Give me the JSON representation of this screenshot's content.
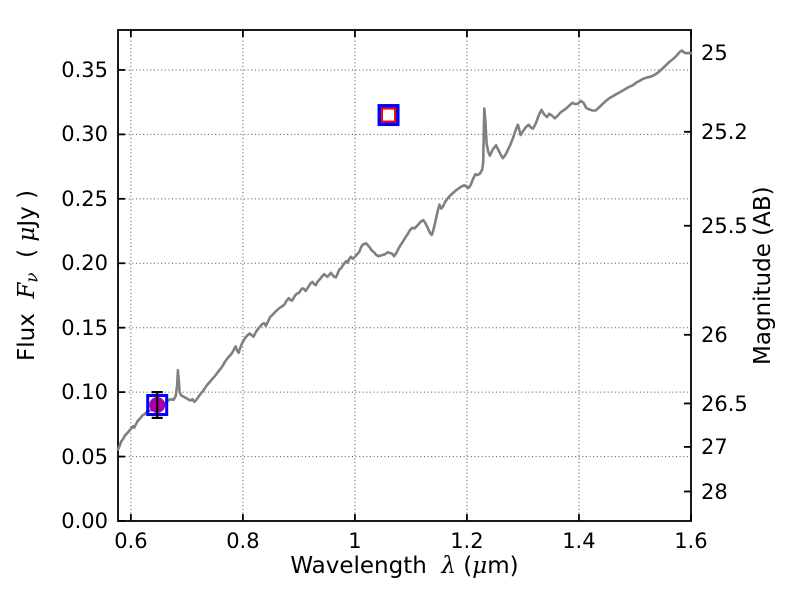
{
  "chart_data": {
    "type": "line",
    "title": "",
    "xlabel": "Wavelength λ (μm)",
    "ylabel_left": "Flux Fν (μJy)",
    "ylabel_right": "Magnitude (AB)",
    "xlabel_parts": {
      "word": "Wavelength  ",
      "lambda": "λ",
      "open": " (",
      "mu": "μ",
      "close": "m)"
    },
    "left_ylabel_parts": {
      "word": "Flux  ",
      "f": "F",
      "nu": "ν",
      "open": "  ( ",
      "mu": "μ",
      "close": "Jy )"
    },
    "right_ylabel": "Magnitude (AB)",
    "xlim": [
      0.577,
      1.6
    ],
    "flux_lim": [
      0,
      0.381
    ],
    "grid": {
      "style": "dotted",
      "color": "#4d4d4d"
    },
    "x_ticks": [
      {
        "value": 0.6,
        "label": "0.6"
      },
      {
        "value": 0.8,
        "label": "0.8"
      },
      {
        "value": 1.0,
        "label": "1"
      },
      {
        "value": 1.2,
        "label": "1.2"
      },
      {
        "value": 1.4,
        "label": "1.4"
      },
      {
        "value": 1.6,
        "label": "1.6"
      }
    ],
    "flux_ticks": [
      {
        "value": 0.0,
        "label": "0.00"
      },
      {
        "value": 0.05,
        "label": "0.05"
      },
      {
        "value": 0.1,
        "label": "0.10"
      },
      {
        "value": 0.15,
        "label": "0.15"
      },
      {
        "value": 0.2,
        "label": "0.20"
      },
      {
        "value": 0.25,
        "label": "0.25"
      },
      {
        "value": 0.3,
        "label": "0.30"
      },
      {
        "value": 0.35,
        "label": "0.35"
      }
    ],
    "mag_ticks": [
      {
        "mag": 25,
        "label": "25",
        "flux": 0.3631
      },
      {
        "mag": 25.2,
        "label": "25.2",
        "flux": 0.302
      },
      {
        "mag": 25.5,
        "label": "25.5",
        "flux": 0.2291
      },
      {
        "mag": 26,
        "label": "26",
        "flux": 0.1445
      },
      {
        "mag": 26.5,
        "label": "26.5",
        "flux": 0.0912
      },
      {
        "mag": 27,
        "label": "27",
        "flux": 0.0575
      },
      {
        "mag": 28,
        "label": "28",
        "flux": 0.0229
      }
    ],
    "series": [
      {
        "name": "model-spectrum",
        "color": "#808080",
        "width": 2.6,
        "points": [
          [
            0.577,
            0.0555
          ],
          [
            0.58,
            0.0585
          ],
          [
            0.583,
            0.062
          ],
          [
            0.586,
            0.0635
          ],
          [
            0.589,
            0.066
          ],
          [
            0.592,
            0.0675
          ],
          [
            0.595,
            0.069
          ],
          [
            0.598,
            0.0705
          ],
          [
            0.601,
            0.072
          ],
          [
            0.604,
            0.0735
          ],
          [
            0.606,
            0.0725
          ],
          [
            0.609,
            0.075
          ],
          [
            0.612,
            0.0775
          ],
          [
            0.615,
            0.079
          ],
          [
            0.618,
            0.0805
          ],
          [
            0.621,
            0.082
          ],
          [
            0.625,
            0.083
          ],
          [
            0.628,
            0.0845
          ],
          [
            0.632,
            0.0855
          ],
          [
            0.636,
            0.086
          ],
          [
            0.64,
            0.0865
          ],
          [
            0.644,
            0.086
          ],
          [
            0.648,
            0.0875
          ],
          [
            0.652,
            0.089
          ],
          [
            0.656,
            0.0905
          ],
          [
            0.66,
            0.0915
          ],
          [
            0.664,
            0.0925
          ],
          [
            0.668,
            0.094
          ],
          [
            0.672,
            0.0945
          ],
          [
            0.676,
            0.094
          ],
          [
            0.68,
            0.097
          ],
          [
            0.6825,
            0.105
          ],
          [
            0.684,
            0.117
          ],
          [
            0.6855,
            0.109
          ],
          [
            0.687,
            0.1
          ],
          [
            0.69,
            0.0975
          ],
          [
            0.694,
            0.0965
          ],
          [
            0.698,
            0.0955
          ],
          [
            0.702,
            0.0945
          ],
          [
            0.706,
            0.0935
          ],
          [
            0.71,
            0.0945
          ],
          [
            0.713,
            0.0925
          ],
          [
            0.716,
            0.0935
          ],
          [
            0.72,
            0.096
          ],
          [
            0.724,
            0.0985
          ],
          [
            0.728,
            0.1005
          ],
          [
            0.732,
            0.103
          ],
          [
            0.736,
            0.1055
          ],
          [
            0.74,
            0.1075
          ],
          [
            0.744,
            0.1095
          ],
          [
            0.748,
            0.1115
          ],
          [
            0.752,
            0.1135
          ],
          [
            0.756,
            0.116
          ],
          [
            0.76,
            0.118
          ],
          [
            0.764,
            0.1205
          ],
          [
            0.768,
            0.1235
          ],
          [
            0.772,
            0.126
          ],
          [
            0.776,
            0.128
          ],
          [
            0.78,
            0.13
          ],
          [
            0.784,
            0.133
          ],
          [
            0.787,
            0.1355
          ],
          [
            0.79,
            0.132
          ],
          [
            0.7925,
            0.1305
          ],
          [
            0.795,
            0.134
          ],
          [
            0.798,
            0.1375
          ],
          [
            0.801,
            0.14
          ],
          [
            0.804,
            0.142
          ],
          [
            0.808,
            0.144
          ],
          [
            0.812,
            0.1455
          ],
          [
            0.816,
            0.144
          ],
          [
            0.819,
            0.143
          ],
          [
            0.823,
            0.1465
          ],
          [
            0.827,
            0.149
          ],
          [
            0.831,
            0.151
          ],
          [
            0.835,
            0.153
          ],
          [
            0.838,
            0.1535
          ],
          [
            0.841,
            0.1515
          ],
          [
            0.845,
            0.155
          ],
          [
            0.849,
            0.1585
          ],
          [
            0.853,
            0.16
          ],
          [
            0.858,
            0.1625
          ],
          [
            0.862,
            0.164
          ],
          [
            0.866,
            0.1655
          ],
          [
            0.87,
            0.1665
          ],
          [
            0.874,
            0.168
          ],
          [
            0.878,
            0.171
          ],
          [
            0.882,
            0.173
          ],
          [
            0.885,
            0.1715
          ],
          [
            0.888,
            0.171
          ],
          [
            0.891,
            0.1735
          ],
          [
            0.894,
            0.1755
          ],
          [
            0.897,
            0.1765
          ],
          [
            0.9,
            0.177
          ],
          [
            0.903,
            0.179
          ],
          [
            0.906,
            0.1805
          ],
          [
            0.909,
            0.18
          ],
          [
            0.912,
            0.1785
          ],
          [
            0.915,
            0.1805
          ],
          [
            0.918,
            0.1825
          ],
          [
            0.921,
            0.1845
          ],
          [
            0.924,
            0.1855
          ],
          [
            0.927,
            0.184
          ],
          [
            0.93,
            0.183
          ],
          [
            0.933,
            0.1855
          ],
          [
            0.936,
            0.187
          ],
          [
            0.939,
            0.1885
          ],
          [
            0.942,
            0.19
          ],
          [
            0.945,
            0.1915
          ],
          [
            0.948,
            0.1905
          ],
          [
            0.951,
            0.1895
          ],
          [
            0.954,
            0.191
          ],
          [
            0.957,
            0.1925
          ],
          [
            0.96,
            0.191
          ],
          [
            0.963,
            0.1895
          ],
          [
            0.966,
            0.189
          ],
          [
            0.969,
            0.192
          ],
          [
            0.972,
            0.195
          ],
          [
            0.975,
            0.196
          ],
          [
            0.978,
            0.198
          ],
          [
            0.981,
            0.2
          ],
          [
            0.984,
            0.2015
          ],
          [
            0.987,
            0.2005
          ],
          [
            0.99,
            0.2035
          ],
          [
            0.993,
            0.205
          ],
          [
            0.996,
            0.2035
          ],
          [
            0.999,
            0.2045
          ],
          [
            1.002,
            0.206
          ],
          [
            1.005,
            0.2075
          ],
          [
            1.008,
            0.209
          ],
          [
            1.011,
            0.2125
          ],
          [
            1.014,
            0.2145
          ],
          [
            1.017,
            0.215
          ],
          [
            1.02,
            0.2155
          ],
          [
            1.023,
            0.214
          ],
          [
            1.026,
            0.2125
          ],
          [
            1.03,
            0.21
          ],
          [
            1.034,
            0.2085
          ],
          [
            1.038,
            0.2065
          ],
          [
            1.042,
            0.2055
          ],
          [
            1.046,
            0.206
          ],
          [
            1.05,
            0.2065
          ],
          [
            1.054,
            0.207
          ],
          [
            1.058,
            0.2085
          ],
          [
            1.062,
            0.208
          ],
          [
            1.066,
            0.2075
          ],
          [
            1.07,
            0.2055
          ],
          [
            1.074,
            0.208
          ],
          [
            1.078,
            0.2115
          ],
          [
            1.082,
            0.2145
          ],
          [
            1.086,
            0.217
          ],
          [
            1.09,
            0.22
          ],
          [
            1.094,
            0.2225
          ],
          [
            1.098,
            0.2255
          ],
          [
            1.102,
            0.2275
          ],
          [
            1.106,
            0.227
          ],
          [
            1.11,
            0.2285
          ],
          [
            1.114,
            0.2305
          ],
          [
            1.118,
            0.2325
          ],
          [
            1.122,
            0.2335
          ],
          [
            1.126,
            0.231
          ],
          [
            1.13,
            0.2275
          ],
          [
            1.134,
            0.2235
          ],
          [
            1.137,
            0.222
          ],
          [
            1.14,
            0.2255
          ],
          [
            1.144,
            0.233
          ],
          [
            1.148,
            0.241
          ],
          [
            1.151,
            0.2455
          ],
          [
            1.154,
            0.2425
          ],
          [
            1.157,
            0.244
          ],
          [
            1.161,
            0.2475
          ],
          [
            1.165,
            0.25
          ],
          [
            1.17,
            0.2525
          ],
          [
            1.175,
            0.2545
          ],
          [
            1.18,
            0.2565
          ],
          [
            1.185,
            0.258
          ],
          [
            1.19,
            0.2595
          ],
          [
            1.195,
            0.2605
          ],
          [
            1.199,
            0.2595
          ],
          [
            1.203,
            0.2585
          ],
          [
            1.207,
            0.261
          ],
          [
            1.211,
            0.2655
          ],
          [
            1.215,
            0.269
          ],
          [
            1.219,
            0.2685
          ],
          [
            1.223,
            0.2695
          ],
          [
            1.227,
            0.2725
          ],
          [
            1.229,
            0.278
          ],
          [
            1.231,
            0.32
          ],
          [
            1.233,
            0.31
          ],
          [
            1.235,
            0.293
          ],
          [
            1.238,
            0.2865
          ],
          [
            1.241,
            0.2835
          ],
          [
            1.245,
            0.2875
          ],
          [
            1.249,
            0.29
          ],
          [
            1.252,
            0.2915
          ],
          [
            1.256,
            0.288
          ],
          [
            1.26,
            0.2845
          ],
          [
            1.264,
            0.2815
          ],
          [
            1.268,
            0.2835
          ],
          [
            1.272,
            0.287
          ],
          [
            1.277,
            0.2915
          ],
          [
            1.282,
            0.297
          ],
          [
            1.287,
            0.3035
          ],
          [
            1.291,
            0.3075
          ],
          [
            1.296,
            0.2995
          ],
          [
            1.3,
            0.3025
          ],
          [
            1.305,
            0.3055
          ],
          [
            1.31,
            0.3075
          ],
          [
            1.314,
            0.3055
          ],
          [
            1.318,
            0.3045
          ],
          [
            1.323,
            0.3085
          ],
          [
            1.328,
            0.3145
          ],
          [
            1.333,
            0.319
          ],
          [
            1.338,
            0.3155
          ],
          [
            1.343,
            0.3135
          ],
          [
            1.347,
            0.316
          ],
          [
            1.352,
            0.3145
          ],
          [
            1.357,
            0.3125
          ],
          [
            1.362,
            0.3145
          ],
          [
            1.367,
            0.317
          ],
          [
            1.372,
            0.3185
          ],
          [
            1.377,
            0.32
          ],
          [
            1.382,
            0.322
          ],
          [
            1.388,
            0.3245
          ],
          [
            1.393,
            0.3235
          ],
          [
            1.398,
            0.3238
          ],
          [
            1.403,
            0.326
          ],
          [
            1.408,
            0.3245
          ],
          [
            1.413,
            0.3205
          ],
          [
            1.418,
            0.3195
          ],
          [
            1.424,
            0.3185
          ],
          [
            1.43,
            0.3185
          ],
          [
            1.436,
            0.321
          ],
          [
            1.442,
            0.3235
          ],
          [
            1.448,
            0.326
          ],
          [
            1.454,
            0.328
          ],
          [
            1.46,
            0.3295
          ],
          [
            1.466,
            0.331
          ],
          [
            1.472,
            0.3325
          ],
          [
            1.478,
            0.334
          ],
          [
            1.484,
            0.3355
          ],
          [
            1.49,
            0.337
          ],
          [
            1.496,
            0.338
          ],
          [
            1.502,
            0.34
          ],
          [
            1.508,
            0.3415
          ],
          [
            1.514,
            0.343
          ],
          [
            1.52,
            0.344
          ],
          [
            1.526,
            0.3445
          ],
          [
            1.532,
            0.3455
          ],
          [
            1.538,
            0.347
          ],
          [
            1.544,
            0.349
          ],
          [
            1.55,
            0.3515
          ],
          [
            1.556,
            0.354
          ],
          [
            1.562,
            0.3565
          ],
          [
            1.568,
            0.3585
          ],
          [
            1.574,
            0.361
          ],
          [
            1.58,
            0.364
          ],
          [
            1.584,
            0.365
          ],
          [
            1.588,
            0.3635
          ],
          [
            1.592,
            0.363
          ],
          [
            1.596,
            0.3632
          ],
          [
            1.6,
            0.363
          ]
        ]
      }
    ],
    "photometry_points": [
      {
        "name": "observed-photometry",
        "x": 0.647,
        "flux": 0.09,
        "err": 0.01,
        "marker": "magenta-filled-circle-in-open-blue-square-with-black-errorbar",
        "circle_color": "#AA00AA",
        "square_color": "#0000FF",
        "errorbar_color": "#000000"
      },
      {
        "name": "model-photometry",
        "x": 1.06,
        "flux": 0.315,
        "marker": "open-red-square-in-open-blue-square",
        "outer_color": "#0000FF",
        "inner_color": "#FF0000"
      }
    ]
  }
}
